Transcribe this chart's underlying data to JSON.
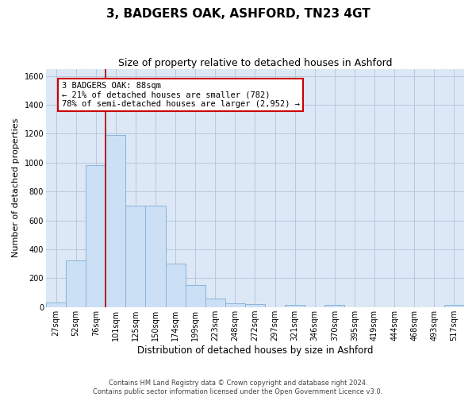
{
  "title": "3, BADGERS OAK, ASHFORD, TN23 4GT",
  "subtitle": "Size of property relative to detached houses in Ashford",
  "xlabel": "Distribution of detached houses by size in Ashford",
  "ylabel": "Number of detached properties",
  "footer_line1": "Contains HM Land Registry data © Crown copyright and database right 2024.",
  "footer_line2": "Contains public sector information licensed under the Open Government Licence v3.0.",
  "bin_labels": [
    "27sqm",
    "52sqm",
    "76sqm",
    "101sqm",
    "125sqm",
    "150sqm",
    "174sqm",
    "199sqm",
    "223sqm",
    "248sqm",
    "272sqm",
    "297sqm",
    "321sqm",
    "346sqm",
    "370sqm",
    "395sqm",
    "419sqm",
    "444sqm",
    "468sqm",
    "493sqm",
    "517sqm"
  ],
  "bar_heights": [
    30,
    320,
    980,
    1190,
    700,
    700,
    300,
    150,
    60,
    25,
    18,
    0,
    15,
    0,
    12,
    0,
    0,
    0,
    0,
    0,
    15
  ],
  "bar_color": "#cce0f5",
  "bar_edge_color": "#8ab4d9",
  "grid_color": "#b8c8e0",
  "background_color": "#dce8f5",
  "ylim": [
    0,
    1650
  ],
  "yticks": [
    0,
    200,
    400,
    600,
    800,
    1000,
    1200,
    1400,
    1600
  ],
  "red_line_x": 2.5,
  "red_line_color": "#aa0000",
  "annotation_line1": "3 BADGERS OAK: 88sqm",
  "annotation_line2": "← 21% of detached houses are smaller (782)",
  "annotation_line3": "78% of semi-detached houses are larger (2,952) →",
  "annotation_box_facecolor": "#ffffff",
  "annotation_box_edgecolor": "#cc0000",
  "title_fontsize": 11,
  "subtitle_fontsize": 9,
  "tick_fontsize": 7,
  "ylabel_fontsize": 8,
  "xlabel_fontsize": 8.5,
  "annotation_fontsize": 7.5
}
